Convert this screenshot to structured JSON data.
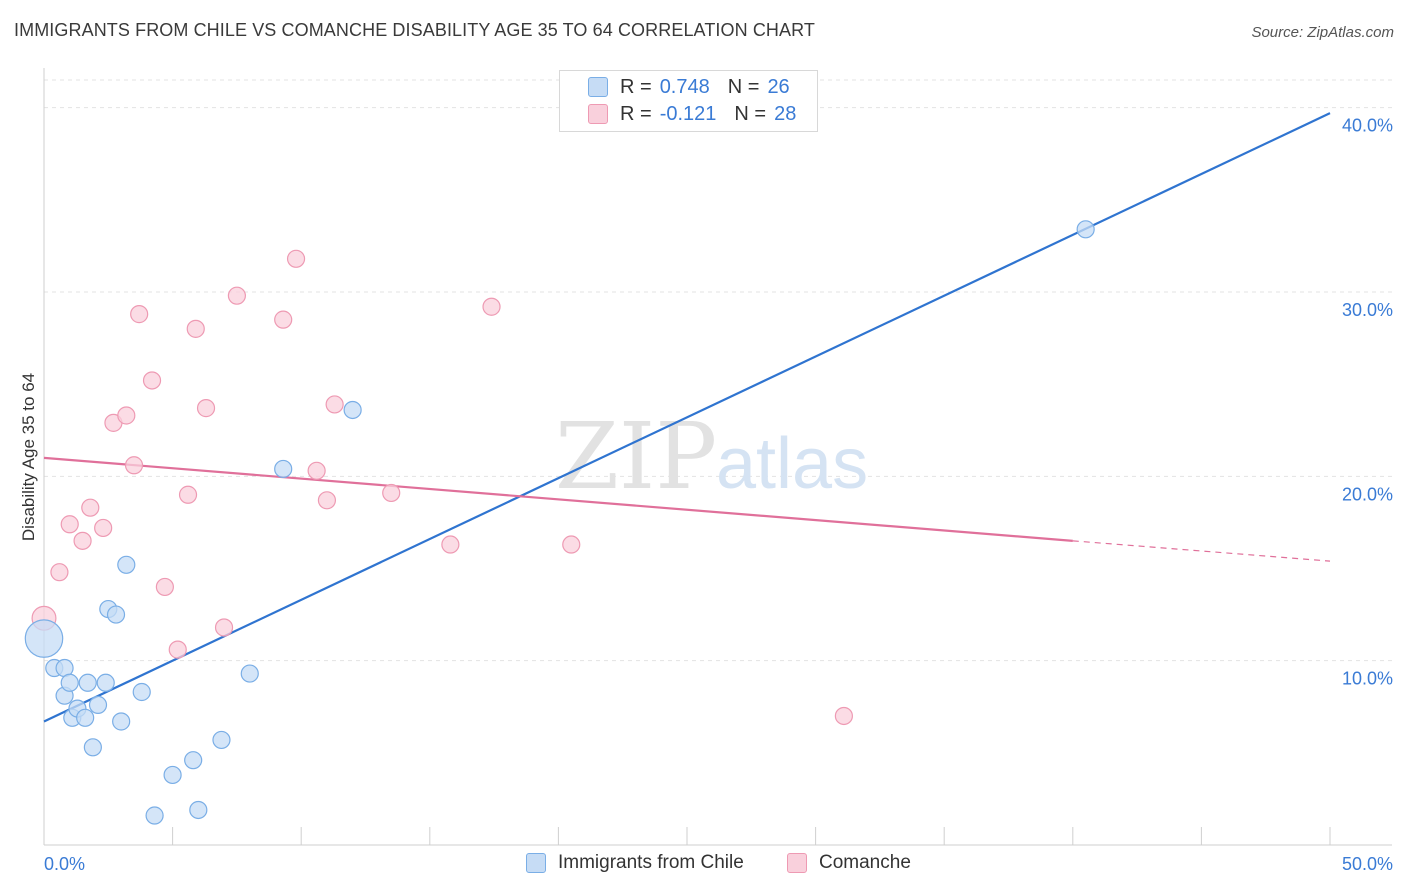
{
  "header": {
    "title": "IMMIGRANTS FROM CHILE VS COMANCHE DISABILITY AGE 35 TO 64 CORRELATION CHART",
    "source": "Source: ZipAtlas.com"
  },
  "legend_top": {
    "rows": [
      {
        "r_label": "R =",
        "r_value": "0.748",
        "n_label": "N =",
        "n_value": "26"
      },
      {
        "r_label": "R =",
        "r_value": "-0.121",
        "n_label": "N =",
        "n_value": "28"
      }
    ]
  },
  "legend_bottom": {
    "items": [
      "Immigrants from Chile",
      "Comanche"
    ]
  },
  "watermark": {
    "zip": "ZIP",
    "atlas": "atlas"
  },
  "colors": {
    "blue_fill": "#c6dcf5",
    "blue_stroke": "#7aaee6",
    "blue_line": "#2f74d0",
    "pink_fill": "#f9d0dc",
    "pink_stroke": "#ee9ab3",
    "pink_line": "#e0709a",
    "tick_label": "#3a7bd5",
    "grid": "#e3e3e3"
  },
  "chart_data": {
    "type": "scatter",
    "title": "IMMIGRANTS FROM CHILE VS COMANCHE DISABILITY AGE 35 TO 64 CORRELATION CHART",
    "xlabel": "",
    "ylabel": "Disability Age 35 to 64",
    "xlim": [
      0,
      50
    ],
    "ylim": [
      0,
      41.5
    ],
    "x_tick_labels": [
      "0.0%",
      "50.0%"
    ],
    "y_ticks": [
      10,
      20,
      30,
      40
    ],
    "y_tick_labels": [
      "10.0%",
      "20.0%",
      "30.0%",
      "40.0%"
    ],
    "grid": true,
    "legend_position": "top-center",
    "series": [
      {
        "name": "Immigrants from Chile",
        "r": 0.748,
        "n": 26,
        "points": [
          [
            0.0,
            11.2,
            22
          ],
          [
            0.4,
            9.6,
            10
          ],
          [
            0.8,
            9.6,
            10
          ],
          [
            0.8,
            8.1,
            10
          ],
          [
            1.0,
            8.8,
            10
          ],
          [
            1.1,
            6.9,
            10
          ],
          [
            1.3,
            7.4,
            10
          ],
          [
            1.6,
            6.9,
            10
          ],
          [
            1.7,
            8.8,
            10
          ],
          [
            1.9,
            5.3,
            10
          ],
          [
            2.1,
            7.6,
            10
          ],
          [
            2.4,
            8.8,
            10
          ],
          [
            2.5,
            12.8,
            10
          ],
          [
            2.8,
            12.5,
            10
          ],
          [
            3.0,
            6.7,
            10
          ],
          [
            3.2,
            15.2,
            10
          ],
          [
            3.8,
            8.3,
            10
          ],
          [
            4.3,
            1.6,
            10
          ],
          [
            5.0,
            3.8,
            10
          ],
          [
            5.8,
            4.6,
            10
          ],
          [
            6.0,
            1.9,
            10
          ],
          [
            6.9,
            5.7,
            10
          ],
          [
            8.0,
            9.3,
            10
          ],
          [
            9.3,
            20.4,
            10
          ],
          [
            12.0,
            23.6,
            10
          ],
          [
            40.5,
            33.4,
            10
          ]
        ],
        "trend": {
          "x": [
            0,
            50
          ],
          "y": [
            6.7,
            39.7
          ],
          "style": "solid"
        }
      },
      {
        "name": "Comanche",
        "r": -0.121,
        "n": 28,
        "points": [
          [
            0.0,
            12.3,
            14
          ],
          [
            0.6,
            14.8,
            10
          ],
          [
            1.0,
            17.4,
            10
          ],
          [
            1.5,
            16.5,
            10
          ],
          [
            1.8,
            18.3,
            10
          ],
          [
            2.3,
            17.2,
            10
          ],
          [
            2.7,
            22.9,
            10
          ],
          [
            3.2,
            23.3,
            10
          ],
          [
            3.5,
            20.6,
            10
          ],
          [
            3.7,
            28.8,
            10
          ],
          [
            4.2,
            25.2,
            10
          ],
          [
            4.7,
            14.0,
            10
          ],
          [
            5.2,
            10.6,
            10
          ],
          [
            5.6,
            19.0,
            10
          ],
          [
            5.9,
            28.0,
            10
          ],
          [
            6.3,
            23.7,
            10
          ],
          [
            7.0,
            11.8,
            10
          ],
          [
            7.5,
            29.8,
            10
          ],
          [
            9.3,
            28.5,
            10
          ],
          [
            9.8,
            31.8,
            10
          ],
          [
            10.6,
            20.3,
            10
          ],
          [
            11.0,
            18.7,
            10
          ],
          [
            11.3,
            23.9,
            10
          ],
          [
            13.5,
            19.1,
            10
          ],
          [
            15.8,
            16.3,
            10
          ],
          [
            17.4,
            29.2,
            10
          ],
          [
            20.5,
            16.3,
            10
          ],
          [
            31.1,
            7.0,
            10
          ]
        ],
        "trend": {
          "x": [
            0,
            40
          ],
          "y": [
            21.0,
            16.5
          ],
          "style": "solid",
          "extension": {
            "x": [
              40,
              50
            ],
            "y": [
              16.5,
              15.4
            ],
            "style": "dashed"
          }
        }
      }
    ]
  }
}
